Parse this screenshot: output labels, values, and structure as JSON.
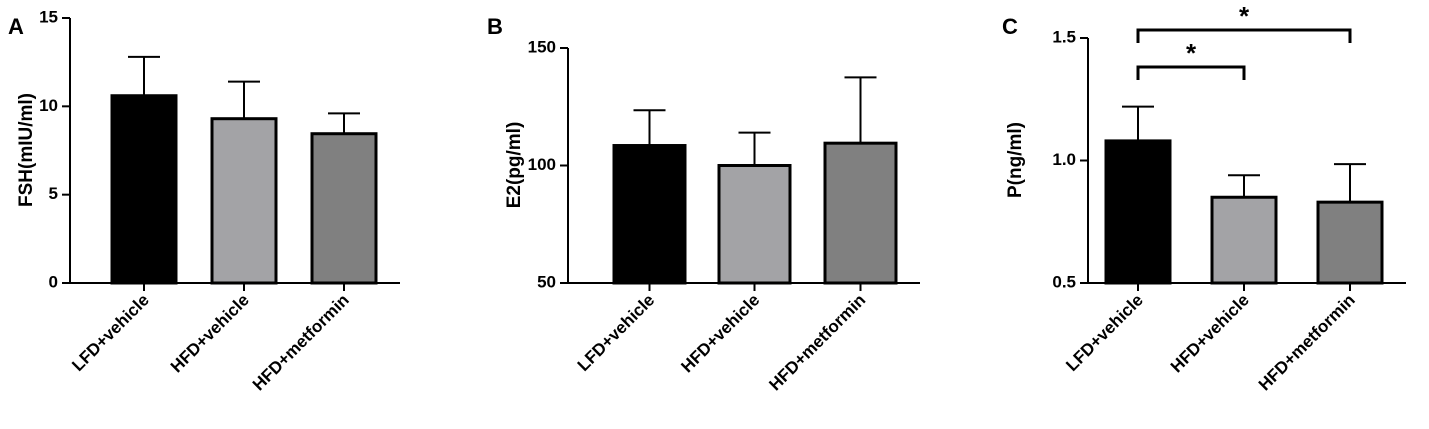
{
  "chart_data": [
    {
      "panel": "A",
      "type": "bar",
      "ylabel": "FSH(mIU/ml)",
      "ylim": [
        0,
        15
      ],
      "yticks": [
        0,
        5,
        10,
        15
      ],
      "categories": [
        "LFD+vehicle",
        "HFD+vehicle",
        "HFD+metformin"
      ],
      "values": [
        10.6,
        9.3,
        8.45
      ],
      "error_upper": [
        12.8,
        11.4,
        9.6
      ],
      "bar_colors": [
        "#000000",
        "#a3a3a6",
        "#808080"
      ],
      "significance": []
    },
    {
      "panel": "B",
      "type": "bar",
      "ylabel": "E2(pg/ml)",
      "ylim": [
        50,
        150
      ],
      "yticks": [
        50,
        100,
        150
      ],
      "categories": [
        "LFD+vehicle",
        "HFD+vehicle",
        "HFD+metformin"
      ],
      "values": [
        108.5,
        100,
        109.5
      ],
      "error_upper": [
        123.5,
        114,
        137.5
      ],
      "bar_colors": [
        "#000000",
        "#a3a3a6",
        "#808080"
      ],
      "significance": []
    },
    {
      "panel": "C",
      "type": "bar",
      "ylabel": "P(ng/ml)",
      "ylim": [
        0.5,
        1.5
      ],
      "yticks": [
        0.5,
        1.0,
        1.5
      ],
      "ytick_labels": [
        "0.5",
        "1.0",
        "1.5"
      ],
      "categories": [
        "LFD+vehicle",
        "HFD+vehicle",
        "HFD+metformin"
      ],
      "values": [
        1.08,
        0.85,
        0.83
      ],
      "error_upper": [
        1.22,
        0.94,
        0.985
      ],
      "bar_colors": [
        "#000000",
        "#a3a3a6",
        "#808080"
      ],
      "significance": [
        {
          "from": 0,
          "to": 1,
          "label": "*"
        },
        {
          "from": 0,
          "to": 2,
          "label": "*"
        }
      ]
    }
  ]
}
